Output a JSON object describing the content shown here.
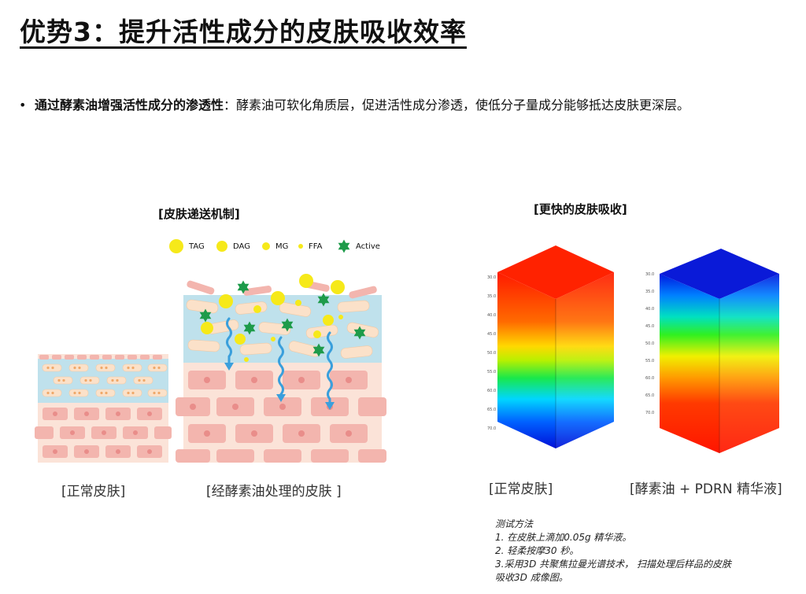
{
  "title": "优势3：提升活性成分的皮肤吸收效率",
  "bullet": {
    "symbol": "•",
    "bold": "通过酵素油增强活性成分的渗透性",
    "text": "：酵素油可软化角质层，促进活性成分渗透，使低分子量成分能够抵达皮肤更深层。"
  },
  "left_panel": {
    "heading": "[皮肤递送机制]",
    "legend": [
      {
        "label": "TAG",
        "icon": "large-yellow-circle"
      },
      {
        "label": "DAG",
        "icon": "medium-yellow-circle"
      },
      {
        "label": "MG",
        "icon": "small-yellow-circle"
      },
      {
        "label": "FFA",
        "icon": "tiny-yellow-dot"
      },
      {
        "label": "Active",
        "icon": "green-star"
      }
    ],
    "caption_normal": "[正常皮肤]",
    "caption_treated": "[经酵素油处理的皮肤 ]",
    "colors": {
      "yellow": "#f6e91a",
      "green": "#1e9b4a",
      "arrow": "#3a9fdc",
      "cell": "#f3b5ae",
      "lipid_layer": "#bfe1ec"
    }
  },
  "right_panel": {
    "heading": "[更快的皮肤吸收]",
    "ticks_left": [
      "30.0",
      "35.0",
      "40.0",
      "45.0",
      "50.0",
      "55.0",
      "60.0",
      "65.0",
      "70.0"
    ],
    "ticks_right": [
      "30.0",
      "35.0",
      "40.0",
      "45.0",
      "50.0",
      "55.0",
      "60.0",
      "65.0",
      "70.0"
    ],
    "caption_normal": "[正常皮肤]",
    "caption_treated": "[酵素油 + PDRN 精华液]"
  },
  "method": {
    "title": "测试方法",
    "steps": [
      "1. 在皮肤上滴加0.05g 精华液。",
      "2. 轻柔按摩30 秒。",
      "3.采用3D 共聚焦拉曼光谱技术， 扫描处理后样品的皮肤",
      "吸收3D 成像图。"
    ]
  }
}
